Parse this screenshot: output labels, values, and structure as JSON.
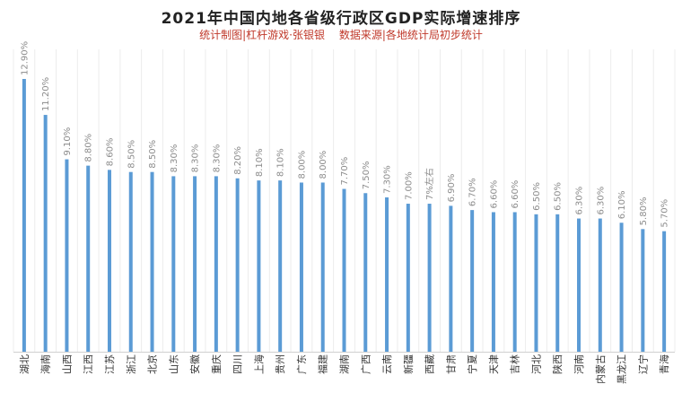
{
  "chart_data": {
    "type": "bar",
    "title": "2021年中国内地各省级行政区GDP实际增速排序",
    "subtitle_left": "统计制图|杠杆游戏·张银银",
    "subtitle_right": "数据来源|各地统计局初步统计",
    "categories": [
      "湖北",
      "海南",
      "山西",
      "江西",
      "江苏",
      "浙江",
      "北京",
      "山东",
      "安徽",
      "重庆",
      "四川",
      "上海",
      "贵州",
      "广东",
      "福建",
      "湖南",
      "广西",
      "云南",
      "新疆",
      "西藏",
      "甘肃",
      "宁夏",
      "天津",
      "吉林",
      "河北",
      "陕西",
      "河南",
      "内蒙古",
      "黑龙江",
      "辽宁",
      "青海"
    ],
    "values": [
      12.9,
      11.2,
      9.1,
      8.8,
      8.6,
      8.5,
      8.5,
      8.3,
      8.3,
      8.3,
      8.2,
      8.1,
      8.1,
      8.0,
      8.0,
      7.7,
      7.5,
      7.3,
      7.0,
      7.0,
      6.9,
      6.7,
      6.6,
      6.6,
      6.5,
      6.5,
      6.3,
      6.3,
      6.1,
      5.8,
      5.7
    ],
    "labels": [
      "12.90%",
      "11.20%",
      "9.10%",
      "8.80%",
      "8.60%",
      "8.50%",
      "8.50%",
      "8.30%",
      "8.30%",
      "8.30%",
      "8.20%",
      "8.10%",
      "8.10%",
      "8.00%",
      "8.00%",
      "7.70%",
      "7.50%",
      "7.30%",
      "7.00%",
      "7%左右",
      "6.90%",
      "6.70%",
      "6.60%",
      "6.60%",
      "6.50%",
      "6.50%",
      "6.30%",
      "6.30%",
      "6.10%",
      "5.80%",
      "5.70%"
    ],
    "xlabel": "",
    "ylabel": "",
    "ylim": [
      0,
      13.2
    ],
    "grid": "vertical",
    "bar_color": "#5b9bd5",
    "label_color": "#8c8c8c"
  }
}
